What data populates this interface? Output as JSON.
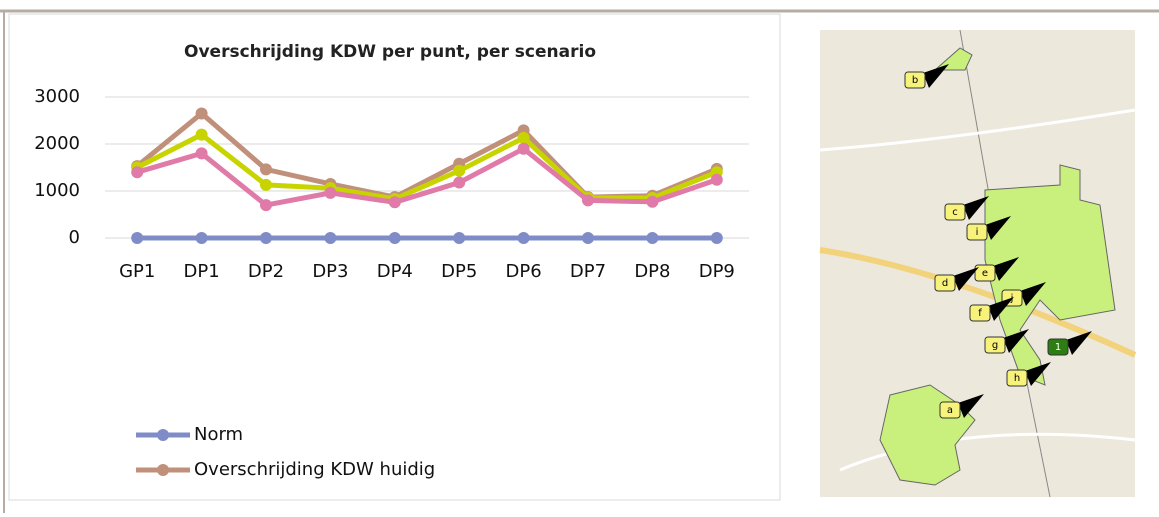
{
  "chart_data": {
    "type": "line",
    "title": "Overschrijding KDW per punt, per scenario",
    "categories": [
      "GP1",
      "DP1",
      "DP2",
      "DP3",
      "DP4",
      "DP5",
      "DP6",
      "DP7",
      "DP8",
      "DP9"
    ],
    "series": [
      {
        "name": "Norm",
        "color": "#7f8cc8",
        "values": [
          0,
          0,
          0,
          0,
          0,
          0,
          0,
          0,
          0,
          0
        ]
      },
      {
        "name": "Overschrijding KDW huidig",
        "color": "#c0907a",
        "values": [
          1530,
          2650,
          1460,
          1150,
          870,
          1580,
          2290,
          870,
          900,
          1470
        ]
      },
      {
        "color": "#c8d400",
        "values": [
          1500,
          2200,
          1130,
          1060,
          830,
          1430,
          2130,
          850,
          850,
          1400
        ]
      },
      {
        "color": "#e07aa8",
        "values": [
          1400,
          1800,
          700,
          960,
          760,
          1180,
          1900,
          800,
          770,
          1240
        ]
      }
    ],
    "ylim": [
      0,
      3000
    ],
    "yticks": [
      0,
      1000,
      2000,
      3000
    ],
    "grid": true
  },
  "map": {
    "labels": [
      "a",
      "b",
      "c",
      "i",
      "e",
      "d",
      "j",
      "f",
      "g",
      "1",
      "h"
    ]
  }
}
